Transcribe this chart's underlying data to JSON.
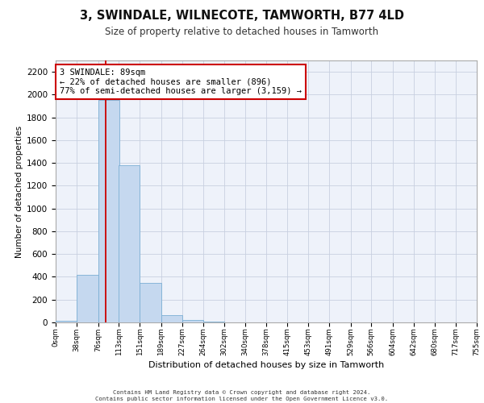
{
  "title": "3, SWINDALE, WILNECOTE, TAMWORTH, B77 4LD",
  "subtitle": "Size of property relative to detached houses in Tamworth",
  "xlabel": "Distribution of detached houses by size in Tamworth",
  "ylabel": "Number of detached properties",
  "bar_color": "#c5d8ef",
  "bar_edge_color": "#7bafd4",
  "background_color": "#eef2fa",
  "grid_color": "#c8d0e0",
  "annotation_box_color": "#cc0000",
  "annotation_text": "3 SWINDALE: 89sqm\n← 22% of detached houses are smaller (896)\n77% of semi-detached houses are larger (3,159) →",
  "property_line_x": 89,
  "bin_edges": [
    0,
    38,
    76,
    113,
    151,
    189,
    227,
    264,
    302,
    340,
    378,
    415,
    453,
    491,
    529,
    566,
    604,
    642,
    680,
    717,
    755
  ],
  "bin_labels": [
    "0sqm",
    "38sqm",
    "76sqm",
    "113sqm",
    "151sqm",
    "189sqm",
    "227sqm",
    "264sqm",
    "302sqm",
    "340sqm",
    "378sqm",
    "415sqm",
    "453sqm",
    "491sqm",
    "529sqm",
    "566sqm",
    "604sqm",
    "642sqm",
    "680sqm",
    "717sqm",
    "755sqm"
  ],
  "bar_heights": [
    15,
    420,
    1950,
    1380,
    345,
    65,
    22,
    8,
    3,
    0,
    0,
    0,
    0,
    0,
    0,
    0,
    0,
    0,
    0,
    0
  ],
  "ylim": [
    0,
    2300
  ],
  "yticks": [
    0,
    200,
    400,
    600,
    800,
    1000,
    1200,
    1400,
    1600,
    1800,
    2000,
    2200
  ],
  "footer_line1": "Contains HM Land Registry data © Crown copyright and database right 2024.",
  "footer_line2": "Contains public sector information licensed under the Open Government Licence v3.0."
}
